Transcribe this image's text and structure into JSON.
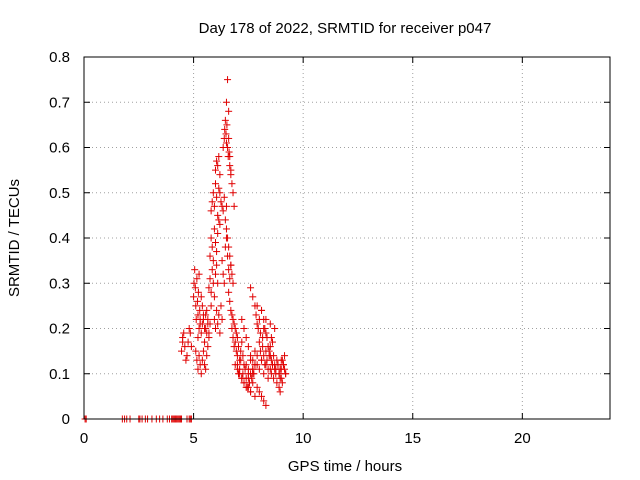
{
  "chart_data": {
    "type": "scatter",
    "title": "Day 178 of 2022, SRMTID for receiver p047",
    "xlabel": "GPS time / hours",
    "ylabel": "SRMTID / TECUs",
    "xlim": [
      0,
      24
    ],
    "ylim": [
      0,
      0.8
    ],
    "xticks": [
      0,
      5,
      10,
      15,
      20
    ],
    "yticks": [
      0,
      0.1,
      0.2,
      0.3,
      0.4,
      0.5,
      0.6,
      0.7,
      0.8
    ],
    "xtick_labels": [
      "0",
      "5",
      "10",
      "15",
      "20"
    ],
    "ytick_labels": [
      "0",
      "0.1",
      "0.2",
      "0.3",
      "0.4",
      "0.5",
      "0.6",
      "0.7",
      "0.8"
    ],
    "grid": true,
    "marker": "+",
    "color": "#e00000",
    "series": [
      {
        "name": "SRMTID",
        "x": [
          0.05,
          0.1,
          1.75,
          1.85,
          1.95,
          2.1,
          2.5,
          2.55,
          2.65,
          2.8,
          2.9,
          3.1,
          3.3,
          3.45,
          3.6,
          3.8,
          3.9,
          4.0,
          4.05,
          4.1,
          4.15,
          4.2,
          4.25,
          4.3,
          4.35,
          4.4,
          4.45,
          4.7,
          4.8,
          4.85,
          4.9,
          4.45,
          4.5,
          4.5,
          4.55,
          4.6,
          4.65,
          4.7,
          4.75,
          4.8,
          4.85,
          4.9,
          5.0,
          5.02,
          5.05,
          5.08,
          5.1,
          5.12,
          5.15,
          5.18,
          5.2,
          5.22,
          5.25,
          5.28,
          5.3,
          5.35,
          5.4,
          5.45,
          5.5,
          5.55,
          5.6,
          5.65,
          5.7,
          5.1,
          5.15,
          5.2,
          5.25,
          5.3,
          5.35,
          5.4,
          5.45,
          5.5,
          5.55,
          5.6,
          5.65,
          5.2,
          5.25,
          5.3,
          5.35,
          5.4,
          5.45,
          5.5,
          5.55,
          5.6,
          5.65,
          5.7,
          5.75,
          5.8,
          5.7,
          5.75,
          5.8,
          5.85,
          5.9,
          5.95,
          6.0,
          6.05,
          6.1,
          5.75,
          5.8,
          5.85,
          5.9,
          5.95,
          6.0,
          6.05,
          6.1,
          6.15,
          6.2,
          5.8,
          5.85,
          5.9,
          5.95,
          6.0,
          6.05,
          6.1,
          6.15,
          6.2,
          6.25,
          6.3,
          6.35,
          6.4,
          6.45,
          6.5,
          6.0,
          6.05,
          6.1,
          6.15,
          6.2,
          5.95,
          6.0,
          6.05,
          6.1,
          6.15,
          6.2,
          6.25,
          6.3,
          6.3,
          6.35,
          6.4,
          6.45,
          6.5,
          6.55,
          6.6,
          6.65,
          6.7,
          6.35,
          6.4,
          6.42,
          6.45,
          6.48,
          6.5,
          6.52,
          6.55,
          6.58,
          6.6,
          6.62,
          6.65,
          6.7,
          6.5,
          6.55,
          6.6,
          6.65,
          6.7,
          6.75,
          6.8,
          6.85,
          6.5,
          6.55,
          6.6,
          6.65,
          6.7,
          6.75,
          6.8,
          6.6,
          6.65,
          6.7,
          6.75,
          6.8,
          6.85,
          6.9,
          6.95,
          7.0,
          6.75,
          6.8,
          6.85,
          6.9,
          6.95,
          7.0,
          7.05,
          7.1,
          7.15,
          7.2,
          7.25,
          7.3,
          7.0,
          7.05,
          7.1,
          7.15,
          7.2,
          7.25,
          7.3,
          7.35,
          7.4,
          7.45,
          7.5,
          7.55,
          7.6,
          7.65,
          7.7,
          7.75,
          7.8,
          7.2,
          7.3,
          7.4,
          7.5,
          7.6,
          7.7,
          7.8,
          7.9,
          7.4,
          7.5,
          7.6,
          7.7,
          7.8,
          7.9,
          8.0,
          8.1,
          8.2,
          8.3,
          8.4,
          7.5,
          7.6,
          7.7,
          7.8,
          7.9,
          8.0,
          8.1,
          8.2,
          8.3,
          7.8,
          7.85,
          7.9,
          7.95,
          8.0,
          8.05,
          8.1,
          8.15,
          8.2,
          8.0,
          8.05,
          8.1,
          8.15,
          8.2,
          8.25,
          8.3,
          8.35,
          8.4,
          8.45,
          8.5,
          8.55,
          8.6,
          8.2,
          8.25,
          8.3,
          8.35,
          8.4,
          8.45,
          8.5,
          8.55,
          8.6,
          8.65,
          8.7,
          8.75,
          8.8,
          8.85,
          8.9,
          8.95,
          9.0,
          8.5,
          8.55,
          8.6,
          8.65,
          8.7,
          8.75,
          8.8,
          8.85,
          8.9,
          8.95,
          9.0,
          9.05,
          9.1,
          9.15,
          9.2,
          8.9,
          8.95,
          9.0,
          9.05,
          9.1,
          9.15,
          9.2,
          7.6,
          7.7,
          7.9,
          8.1,
          8.3,
          8.5,
          8.7,
          6.9,
          7.0,
          7.1,
          7.2,
          7.3,
          7.4,
          7.5,
          7.6,
          7.7
        ],
        "y": [
          0,
          0,
          0,
          0,
          0,
          0,
          0,
          0,
          0,
          0,
          0,
          0,
          0,
          0,
          0,
          0,
          0,
          0,
          0,
          0,
          0,
          0,
          0,
          0,
          0,
          0,
          0,
          0,
          0,
          0,
          0,
          0.15,
          0.18,
          0.17,
          0.19,
          0.16,
          0.13,
          0.14,
          0.17,
          0.2,
          0.19,
          0.16,
          0.27,
          0.3,
          0.33,
          0.29,
          0.25,
          0.22,
          0.31,
          0.26,
          0.23,
          0.28,
          0.32,
          0.24,
          0.21,
          0.27,
          0.25,
          0.22,
          0.2,
          0.23,
          0.19,
          0.21,
          0.18,
          0.15,
          0.13,
          0.11,
          0.14,
          0.12,
          0.1,
          0.13,
          0.15,
          0.12,
          0.11,
          0.14,
          0.16,
          0.18,
          0.2,
          0.22,
          0.19,
          0.21,
          0.23,
          0.17,
          0.2,
          0.24,
          0.22,
          0.19,
          0.21,
          0.25,
          0.29,
          0.31,
          0.28,
          0.33,
          0.3,
          0.27,
          0.32,
          0.34,
          0.3,
          0.36,
          0.4,
          0.38,
          0.35,
          0.42,
          0.39,
          0.37,
          0.41,
          0.44,
          0.43,
          0.46,
          0.48,
          0.5,
          0.47,
          0.52,
          0.49,
          0.45,
          0.51,
          0.5,
          0.48,
          0.47,
          0.46,
          0.49,
          0.44,
          0.47,
          0.55,
          0.57,
          0.56,
          0.58,
          0.54,
          0.22,
          0.2,
          0.24,
          0.21,
          0.23,
          0.19,
          0.25,
          0.22,
          0.35,
          0.32,
          0.3,
          0.38,
          0.4,
          0.36,
          0.33,
          0.31,
          0.34,
          0.6,
          0.62,
          0.64,
          0.66,
          0.63,
          0.61,
          0.65,
          0.6,
          0.58,
          0.62,
          0.59,
          0.56,
          0.54,
          0.7,
          0.75,
          0.68,
          0.58,
          0.55,
          0.52,
          0.5,
          0.47,
          0.42,
          0.4,
          0.38,
          0.36,
          0.34,
          0.32,
          0.3,
          0.28,
          0.26,
          0.24,
          0.23,
          0.22,
          0.21,
          0.2,
          0.19,
          0.18,
          0.2,
          0.18,
          0.16,
          0.17,
          0.15,
          0.14,
          0.16,
          0.13,
          0.15,
          0.17,
          0.14,
          0.12,
          0.12,
          0.1,
          0.11,
          0.13,
          0.09,
          0.1,
          0.08,
          0.11,
          0.09,
          0.07,
          0.1,
          0.08,
          0.06,
          0.09,
          0.11,
          0.1,
          0.12,
          0.22,
          0.2,
          0.18,
          0.16,
          0.14,
          0.13,
          0.15,
          0.12,
          0.12,
          0.11,
          0.13,
          0.1,
          0.12,
          0.14,
          0.11,
          0.13,
          0.1,
          0.12,
          0.09,
          0.07,
          0.06,
          0.08,
          0.05,
          0.07,
          0.06,
          0.05,
          0.04,
          0.03,
          0.25,
          0.23,
          0.21,
          0.2,
          0.22,
          0.19,
          0.24,
          0.18,
          0.2,
          0.17,
          0.15,
          0.13,
          0.16,
          0.14,
          0.12,
          0.15,
          0.13,
          0.11,
          0.14,
          0.16,
          0.18,
          0.17,
          0.22,
          0.2,
          0.19,
          0.18,
          0.16,
          0.15,
          0.14,
          0.13,
          0.12,
          0.14,
          0.12,
          0.11,
          0.13,
          0.12,
          0.1,
          0.11,
          0.13,
          0.11,
          0.1,
          0.12,
          0.09,
          0.11,
          0.1,
          0.08,
          0.12,
          0.1,
          0.09,
          0.11,
          0.13,
          0.12,
          0.14,
          0.1,
          0.07,
          0.06,
          0.09,
          0.08,
          0.12,
          0.11,
          0.1,
          0.29,
          0.27,
          0.25,
          0.24,
          0.22,
          0.21,
          0.2,
          0.12,
          0.11,
          0.1,
          0.09,
          0.08,
          0.07,
          0.09,
          0.1,
          0.11
        ]
      }
    ]
  }
}
